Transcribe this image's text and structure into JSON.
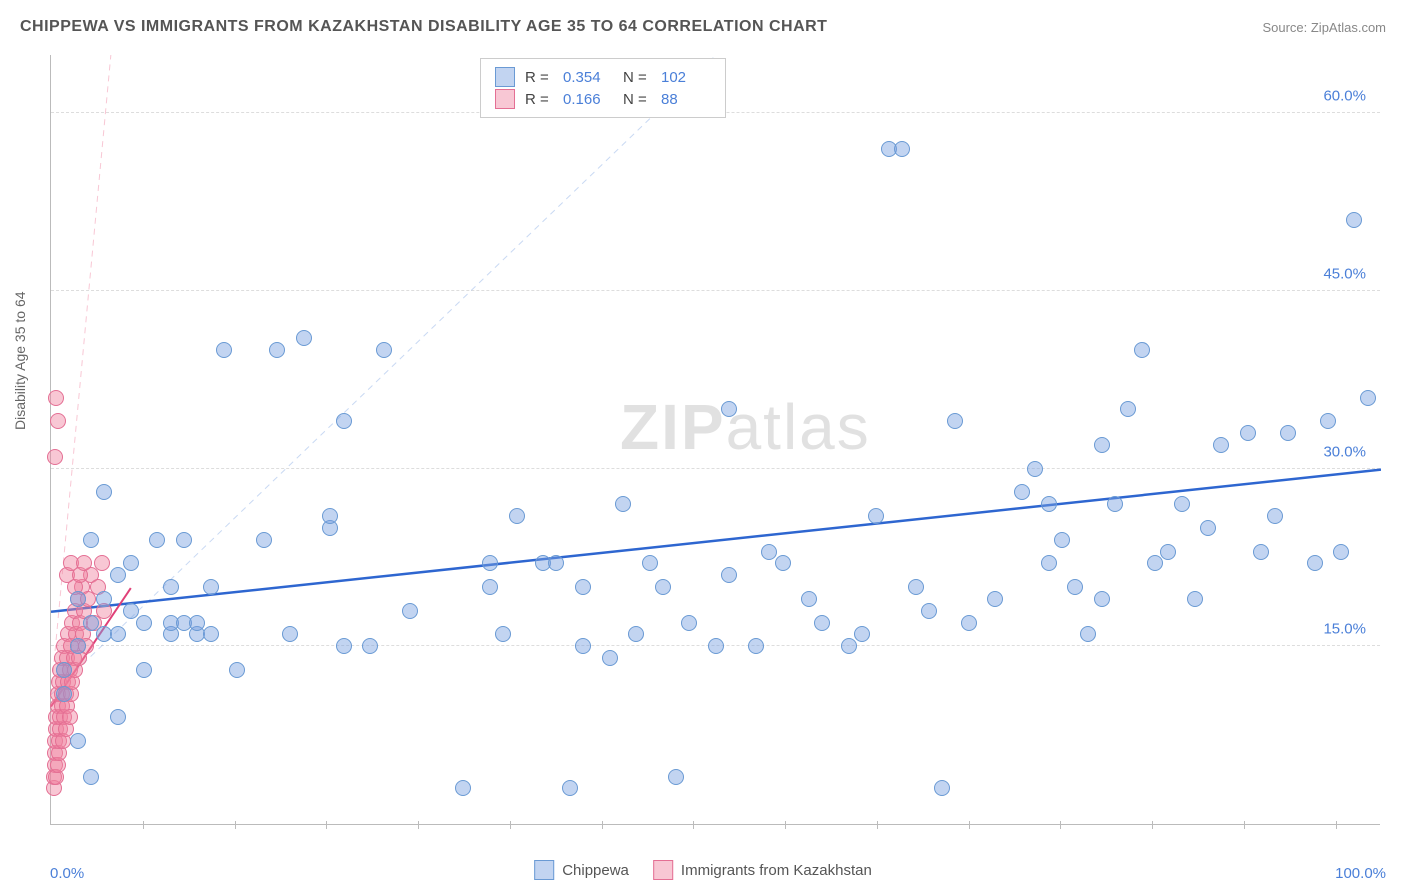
{
  "title": "CHIPPEWA VS IMMIGRANTS FROM KAZAKHSTAN DISABILITY AGE 35 TO 64 CORRELATION CHART",
  "source": "Source: ZipAtlas.com",
  "ylabel": "Disability Age 35 to 64",
  "watermark_bold": "ZIP",
  "watermark_rest": "atlas",
  "chart": {
    "type": "scatter",
    "xlim": [
      0,
      100
    ],
    "ylim": [
      0,
      65
    ],
    "ytick_labels": [
      "15.0%",
      "30.0%",
      "45.0%",
      "60.0%"
    ],
    "ytick_values": [
      15,
      30,
      45,
      60
    ],
    "xtick_labels": [
      "0.0%",
      "100.0%"
    ],
    "xtick_values": [
      0,
      100
    ],
    "xtick_mark_positions": [
      6.9,
      13.8,
      20.7,
      27.6,
      34.5,
      41.4,
      48.3,
      55.2,
      62.1,
      69.0,
      75.9,
      82.8,
      89.7,
      96.6
    ],
    "grid_color": "#dddddd",
    "background_color": "#ffffff",
    "marker_radius": 8,
    "marker_stroke_width": 1.5,
    "series": [
      {
        "name": "Chippewa",
        "fill": "rgba(120,160,225,0.45)",
        "stroke": "#6a9ad4",
        "r_value": "0.354",
        "n_value": "102",
        "trend": {
          "x1": 0,
          "y1": 18,
          "x2": 100,
          "y2": 30,
          "color": "#2e66d0",
          "width": 2.5
        },
        "ref_line": {
          "x1": 0,
          "y1": 11,
          "x2": 50,
          "y2": 65,
          "color": "rgba(120,160,225,0.4)",
          "dash": "6,5",
          "width": 1
        },
        "points": [
          [
            1,
            11
          ],
          [
            1,
            13
          ],
          [
            2,
            7
          ],
          [
            2,
            15
          ],
          [
            2,
            19
          ],
          [
            3,
            4
          ],
          [
            3,
            17
          ],
          [
            3,
            24
          ],
          [
            4,
            16
          ],
          [
            4,
            19
          ],
          [
            4,
            28
          ],
          [
            5,
            9
          ],
          [
            5,
            16
          ],
          [
            5,
            21
          ],
          [
            6,
            18
          ],
          [
            6,
            22
          ],
          [
            7,
            13
          ],
          [
            7,
            17
          ],
          [
            8,
            24
          ],
          [
            9,
            16
          ],
          [
            9,
            17
          ],
          [
            9,
            20
          ],
          [
            10,
            17
          ],
          [
            10,
            24
          ],
          [
            11,
            16
          ],
          [
            11,
            17
          ],
          [
            12,
            16
          ],
          [
            12,
            20
          ],
          [
            13,
            40
          ],
          [
            14,
            13
          ],
          [
            16,
            24
          ],
          [
            17,
            40
          ],
          [
            18,
            16
          ],
          [
            19,
            41
          ],
          [
            21,
            25
          ],
          [
            21,
            26
          ],
          [
            22,
            15
          ],
          [
            22,
            34
          ],
          [
            24,
            15
          ],
          [
            25,
            40
          ],
          [
            27,
            18
          ],
          [
            31,
            3
          ],
          [
            33,
            20
          ],
          [
            33,
            22
          ],
          [
            34,
            16
          ],
          [
            35,
            26
          ],
          [
            37,
            22
          ],
          [
            38,
            22
          ],
          [
            39,
            3
          ],
          [
            40,
            20
          ],
          [
            40,
            15
          ],
          [
            42,
            14
          ],
          [
            43,
            27
          ],
          [
            44,
            16
          ],
          [
            45,
            22
          ],
          [
            46,
            20
          ],
          [
            47,
            4
          ],
          [
            48,
            17
          ],
          [
            50,
            15
          ],
          [
            51,
            35
          ],
          [
            51,
            21
          ],
          [
            53,
            15
          ],
          [
            54,
            23
          ],
          [
            55,
            22
          ],
          [
            57,
            19
          ],
          [
            58,
            17
          ],
          [
            60,
            15
          ],
          [
            61,
            16
          ],
          [
            62,
            26
          ],
          [
            63,
            57
          ],
          [
            64,
            57
          ],
          [
            65,
            20
          ],
          [
            66,
            18
          ],
          [
            67,
            3
          ],
          [
            68,
            34
          ],
          [
            69,
            17
          ],
          [
            71,
            19
          ],
          [
            73,
            28
          ],
          [
            74,
            30
          ],
          [
            75,
            22
          ],
          [
            75,
            27
          ],
          [
            76,
            24
          ],
          [
            77,
            20
          ],
          [
            78,
            16
          ],
          [
            79,
            19
          ],
          [
            79,
            32
          ],
          [
            80,
            27
          ],
          [
            81,
            35
          ],
          [
            82,
            40
          ],
          [
            83,
            22
          ],
          [
            84,
            23
          ],
          [
            85,
            27
          ],
          [
            86,
            19
          ],
          [
            87,
            25
          ],
          [
            88,
            32
          ],
          [
            90,
            33
          ],
          [
            91,
            23
          ],
          [
            92,
            26
          ],
          [
            93,
            33
          ],
          [
            95,
            22
          ],
          [
            96,
            34
          ],
          [
            97,
            23
          ],
          [
            98,
            51
          ],
          [
            99,
            36
          ]
        ]
      },
      {
        "name": "Immigrants from Kazakhstan",
        "fill": "rgba(240,130,160,0.45)",
        "stroke": "#e46f94",
        "r_value": "0.166",
        "n_value": "88",
        "trend": {
          "x1": 0,
          "y1": 10,
          "x2": 6,
          "y2": 20,
          "color": "#e04078",
          "width": 2
        },
        "ref_line": {
          "x1": 0,
          "y1": 11,
          "x2": 4.5,
          "y2": 65,
          "color": "rgba(240,130,160,0.45)",
          "dash": "6,5",
          "width": 1
        },
        "points": [
          [
            0.2,
            3
          ],
          [
            0.2,
            4
          ],
          [
            0.3,
            5
          ],
          [
            0.3,
            6
          ],
          [
            0.3,
            7
          ],
          [
            0.4,
            4
          ],
          [
            0.4,
            8
          ],
          [
            0.4,
            9
          ],
          [
            0.5,
            5
          ],
          [
            0.5,
            10
          ],
          [
            0.5,
            11
          ],
          [
            0.6,
            6
          ],
          [
            0.6,
            7
          ],
          [
            0.6,
            12
          ],
          [
            0.7,
            8
          ],
          [
            0.7,
            9
          ],
          [
            0.7,
            13
          ],
          [
            0.8,
            10
          ],
          [
            0.8,
            11
          ],
          [
            0.8,
            14
          ],
          [
            0.9,
            12
          ],
          [
            0.9,
            7
          ],
          [
            1.0,
            13
          ],
          [
            1.0,
            9
          ],
          [
            1.0,
            15
          ],
          [
            1.1,
            8
          ],
          [
            1.1,
            11
          ],
          [
            1.2,
            14
          ],
          [
            1.2,
            10
          ],
          [
            1.3,
            12
          ],
          [
            1.3,
            16
          ],
          [
            1.4,
            13
          ],
          [
            1.4,
            9
          ],
          [
            1.5,
            15
          ],
          [
            1.5,
            11
          ],
          [
            1.6,
            17
          ],
          [
            1.6,
            12
          ],
          [
            1.7,
            14
          ],
          [
            1.8,
            18
          ],
          [
            1.8,
            13
          ],
          [
            1.9,
            16
          ],
          [
            2.0,
            15
          ],
          [
            2.0,
            19
          ],
          [
            2.1,
            14
          ],
          [
            2.2,
            17
          ],
          [
            2.3,
            20
          ],
          [
            2.4,
            16
          ],
          [
            2.5,
            18
          ],
          [
            2.6,
            15
          ],
          [
            2.8,
            19
          ],
          [
            3.0,
            21
          ],
          [
            3.2,
            17
          ],
          [
            3.5,
            20
          ],
          [
            3.8,
            22
          ],
          [
            4.0,
            18
          ],
          [
            0.3,
            31
          ],
          [
            0.5,
            34
          ],
          [
            0.4,
            36
          ],
          [
            1.2,
            21
          ],
          [
            1.5,
            22
          ],
          [
            1.8,
            20
          ],
          [
            2.2,
            21
          ],
          [
            2.5,
            22
          ]
        ]
      }
    ]
  },
  "legend_top": {
    "rows": [
      {
        "swatch_fill": "rgba(120,160,225,0.45)",
        "swatch_stroke": "#6a9ad4",
        "r": "0.354",
        "n": "102"
      },
      {
        "swatch_fill": "rgba(240,130,160,0.45)",
        "swatch_stroke": "#e46f94",
        "r": "0.166",
        "n": "88"
      }
    ]
  },
  "legend_bottom": {
    "items": [
      {
        "swatch_fill": "rgba(120,160,225,0.45)",
        "swatch_stroke": "#6a9ad4",
        "label": "Chippewa"
      },
      {
        "swatch_fill": "rgba(240,130,160,0.45)",
        "swatch_stroke": "#e46f94",
        "label": "Immigrants from Kazakhstan"
      }
    ]
  }
}
